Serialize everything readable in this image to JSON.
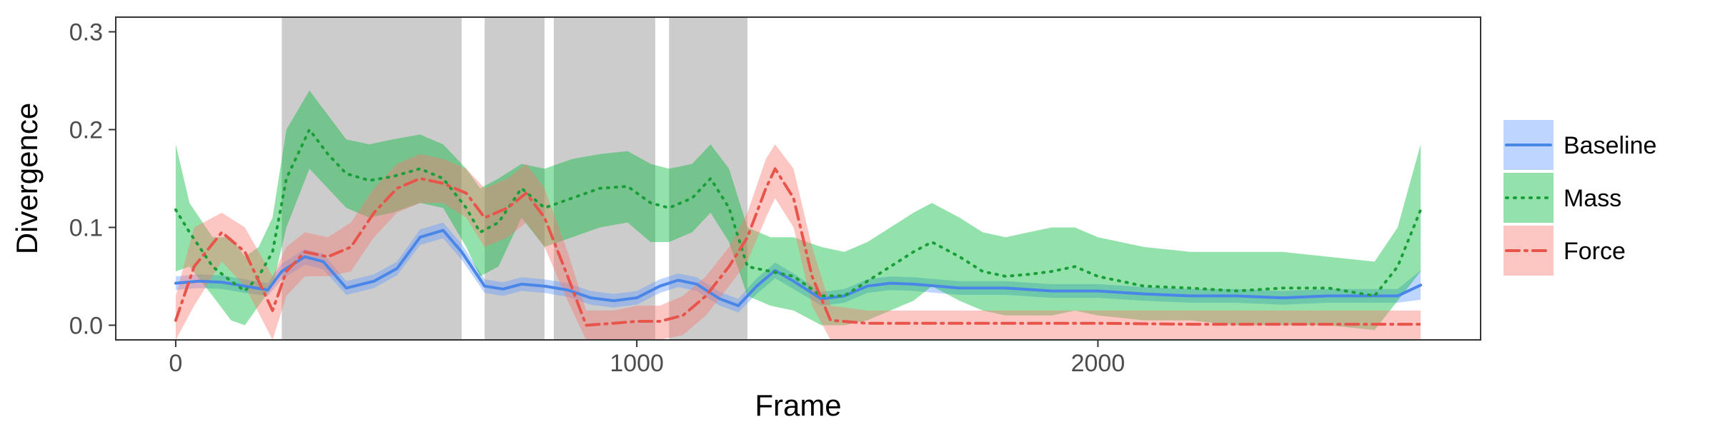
{
  "chart_data": {
    "type": "line",
    "xlabel": "Frame",
    "ylabel": "Divergence",
    "xlim": [
      -130,
      2830
    ],
    "ylim": [
      -0.015,
      0.315
    ],
    "x_ticks": [
      0,
      1000,
      2000
    ],
    "x_tick_labels": [
      "0",
      "1000",
      "2000"
    ],
    "y_ticks": [
      0.0,
      0.1,
      0.2,
      0.3
    ],
    "y_tick_labels": [
      "0.0",
      "0.1",
      "0.2",
      "0.3"
    ],
    "grid": false,
    "legend_position": "right",
    "shaded_regions": [
      [
        230,
        620
      ],
      [
        670,
        800
      ],
      [
        820,
        1040
      ],
      [
        1070,
        1240
      ]
    ],
    "shaded_region_color": "#cccccc",
    "series": [
      {
        "name": "Baseline",
        "color": "#619cff",
        "line_color": "#4a86e8",
        "dash": "solid",
        "points": [
          [
            0,
            0.043,
            0.036,
            0.05
          ],
          [
            50,
            0.045,
            0.038,
            0.052
          ],
          [
            100,
            0.044,
            0.037,
            0.051
          ],
          [
            150,
            0.04,
            0.033,
            0.047
          ],
          [
            200,
            0.036,
            0.03,
            0.043
          ],
          [
            230,
            0.055,
            0.047,
            0.063
          ],
          [
            280,
            0.07,
            0.062,
            0.078
          ],
          [
            320,
            0.065,
            0.057,
            0.073
          ],
          [
            370,
            0.038,
            0.031,
            0.045
          ],
          [
            430,
            0.045,
            0.038,
            0.052
          ],
          [
            480,
            0.058,
            0.051,
            0.065
          ],
          [
            530,
            0.09,
            0.082,
            0.098
          ],
          [
            580,
            0.097,
            0.089,
            0.105
          ],
          [
            620,
            0.075,
            0.067,
            0.083
          ],
          [
            670,
            0.04,
            0.033,
            0.047
          ],
          [
            710,
            0.037,
            0.03,
            0.044
          ],
          [
            750,
            0.042,
            0.035,
            0.049
          ],
          [
            800,
            0.04,
            0.033,
            0.047
          ],
          [
            850,
            0.036,
            0.029,
            0.043
          ],
          [
            900,
            0.028,
            0.021,
            0.035
          ],
          [
            950,
            0.025,
            0.018,
            0.032
          ],
          [
            1000,
            0.028,
            0.021,
            0.035
          ],
          [
            1050,
            0.04,
            0.033,
            0.047
          ],
          [
            1090,
            0.046,
            0.039,
            0.053
          ],
          [
            1130,
            0.042,
            0.035,
            0.049
          ],
          [
            1180,
            0.027,
            0.02,
            0.034
          ],
          [
            1220,
            0.02,
            0.013,
            0.027
          ],
          [
            1260,
            0.04,
            0.032,
            0.048
          ],
          [
            1300,
            0.056,
            0.048,
            0.064
          ],
          [
            1340,
            0.045,
            0.037,
            0.053
          ],
          [
            1400,
            0.027,
            0.02,
            0.034
          ],
          [
            1450,
            0.03,
            0.023,
            0.037
          ],
          [
            1500,
            0.04,
            0.033,
            0.047
          ],
          [
            1550,
            0.043,
            0.036,
            0.05
          ],
          [
            1600,
            0.042,
            0.035,
            0.049
          ],
          [
            1700,
            0.038,
            0.031,
            0.045
          ],
          [
            1800,
            0.038,
            0.031,
            0.045
          ],
          [
            1900,
            0.035,
            0.028,
            0.042
          ],
          [
            2000,
            0.035,
            0.028,
            0.042
          ],
          [
            2100,
            0.032,
            0.025,
            0.039
          ],
          [
            2200,
            0.03,
            0.023,
            0.037
          ],
          [
            2300,
            0.03,
            0.023,
            0.037
          ],
          [
            2400,
            0.028,
            0.021,
            0.035
          ],
          [
            2500,
            0.03,
            0.023,
            0.037
          ],
          [
            2600,
            0.03,
            0.023,
            0.037
          ],
          [
            2650,
            0.03,
            0.023,
            0.037
          ],
          [
            2700,
            0.041,
            0.026,
            0.056
          ]
        ]
      },
      {
        "name": "Mass",
        "color": "#00ba38",
        "line_color": "#1a9e3a",
        "dash": "dotted",
        "points": [
          [
            0,
            0.118,
            0.055,
            0.185
          ],
          [
            30,
            0.095,
            0.06,
            0.125
          ],
          [
            80,
            0.06,
            0.03,
            0.09
          ],
          [
            120,
            0.045,
            0.005,
            0.09
          ],
          [
            150,
            0.035,
            0.0,
            0.07
          ],
          [
            180,
            0.05,
            0.02,
            0.08
          ],
          [
            210,
            0.075,
            0.04,
            0.11
          ],
          [
            240,
            0.15,
            0.1,
            0.2
          ],
          [
            290,
            0.2,
            0.16,
            0.24
          ],
          [
            330,
            0.175,
            0.14,
            0.215
          ],
          [
            370,
            0.155,
            0.12,
            0.19
          ],
          [
            420,
            0.148,
            0.11,
            0.185
          ],
          [
            470,
            0.152,
            0.115,
            0.19
          ],
          [
            530,
            0.16,
            0.125,
            0.195
          ],
          [
            580,
            0.15,
            0.12,
            0.185
          ],
          [
            630,
            0.12,
            0.08,
            0.16
          ],
          [
            660,
            0.095,
            0.05,
            0.14
          ],
          [
            700,
            0.105,
            0.06,
            0.15
          ],
          [
            750,
            0.14,
            0.11,
            0.165
          ],
          [
            800,
            0.12,
            0.08,
            0.16
          ],
          [
            860,
            0.13,
            0.09,
            0.17
          ],
          [
            920,
            0.14,
            0.1,
            0.175
          ],
          [
            980,
            0.142,
            0.105,
            0.178
          ],
          [
            1030,
            0.125,
            0.085,
            0.165
          ],
          [
            1070,
            0.12,
            0.085,
            0.16
          ],
          [
            1120,
            0.13,
            0.095,
            0.165
          ],
          [
            1160,
            0.15,
            0.115,
            0.185
          ],
          [
            1200,
            0.12,
            0.085,
            0.16
          ],
          [
            1240,
            0.06,
            0.03,
            0.1
          ],
          [
            1290,
            0.055,
            0.02,
            0.09
          ],
          [
            1340,
            0.05,
            0.015,
            0.09
          ],
          [
            1400,
            0.03,
            0.0,
            0.08
          ],
          [
            1450,
            0.03,
            0.0,
            0.075
          ],
          [
            1500,
            0.045,
            0.005,
            0.085
          ],
          [
            1550,
            0.06,
            0.015,
            0.1
          ],
          [
            1600,
            0.075,
            0.025,
            0.115
          ],
          [
            1640,
            0.085,
            0.04,
            0.125
          ],
          [
            1700,
            0.07,
            0.025,
            0.11
          ],
          [
            1750,
            0.055,
            0.015,
            0.095
          ],
          [
            1800,
            0.05,
            0.01,
            0.09
          ],
          [
            1850,
            0.052,
            0.01,
            0.095
          ],
          [
            1900,
            0.055,
            0.01,
            0.1
          ],
          [
            1950,
            0.06,
            0.015,
            0.1
          ],
          [
            2000,
            0.05,
            0.01,
            0.09
          ],
          [
            2100,
            0.04,
            0.005,
            0.08
          ],
          [
            2200,
            0.038,
            0.005,
            0.075
          ],
          [
            2300,
            0.035,
            0.0,
            0.075
          ],
          [
            2400,
            0.038,
            0.0,
            0.075
          ],
          [
            2500,
            0.038,
            0.0,
            0.07
          ],
          [
            2600,
            0.03,
            -0.005,
            0.065
          ],
          [
            2650,
            0.06,
            0.025,
            0.1
          ],
          [
            2700,
            0.118,
            0.055,
            0.185
          ]
        ]
      },
      {
        "name": "Force",
        "color": "#f8766d",
        "line_color": "#e8534a",
        "dash": "dashdot",
        "points": [
          [
            0,
            0.005,
            -0.015,
            0.03
          ],
          [
            40,
            0.06,
            0.02,
            0.1
          ],
          [
            100,
            0.095,
            0.065,
            0.115
          ],
          [
            150,
            0.075,
            0.04,
            0.1
          ],
          [
            210,
            0.015,
            -0.015,
            0.05
          ],
          [
            240,
            0.055,
            0.03,
            0.08
          ],
          [
            280,
            0.075,
            0.05,
            0.095
          ],
          [
            330,
            0.07,
            0.05,
            0.09
          ],
          [
            380,
            0.08,
            0.055,
            0.105
          ],
          [
            430,
            0.115,
            0.09,
            0.14
          ],
          [
            480,
            0.14,
            0.115,
            0.165
          ],
          [
            530,
            0.15,
            0.125,
            0.175
          ],
          [
            580,
            0.145,
            0.125,
            0.17
          ],
          [
            630,
            0.135,
            0.11,
            0.16
          ],
          [
            670,
            0.11,
            0.08,
            0.14
          ],
          [
            720,
            0.12,
            0.09,
            0.15
          ],
          [
            760,
            0.135,
            0.105,
            0.165
          ],
          [
            800,
            0.11,
            0.08,
            0.14
          ],
          [
            850,
            0.05,
            0.025,
            0.075
          ],
          [
            890,
            0.0,
            -0.015,
            0.015
          ],
          [
            950,
            0.002,
            -0.015,
            0.015
          ],
          [
            1000,
            0.004,
            -0.015,
            0.02
          ],
          [
            1050,
            0.004,
            -0.015,
            0.02
          ],
          [
            1100,
            0.01,
            -0.01,
            0.03
          ],
          [
            1150,
            0.03,
            0.01,
            0.05
          ],
          [
            1200,
            0.06,
            0.04,
            0.08
          ],
          [
            1240,
            0.09,
            0.065,
            0.115
          ],
          [
            1280,
            0.14,
            0.11,
            0.17
          ],
          [
            1300,
            0.16,
            0.13,
            0.185
          ],
          [
            1340,
            0.13,
            0.1,
            0.16
          ],
          [
            1380,
            0.05,
            0.02,
            0.08
          ],
          [
            1420,
            0.005,
            -0.015,
            0.02
          ],
          [
            1500,
            0.002,
            -0.015,
            0.015
          ],
          [
            1600,
            0.002,
            -0.015,
            0.015
          ],
          [
            1800,
            0.002,
            -0.015,
            0.015
          ],
          [
            2000,
            0.002,
            -0.015,
            0.015
          ],
          [
            2200,
            0.001,
            -0.015,
            0.015
          ],
          [
            2400,
            0.001,
            -0.015,
            0.015
          ],
          [
            2600,
            0.001,
            -0.015,
            0.015
          ],
          [
            2700,
            0.001,
            -0.015,
            0.015
          ]
        ]
      }
    ]
  }
}
